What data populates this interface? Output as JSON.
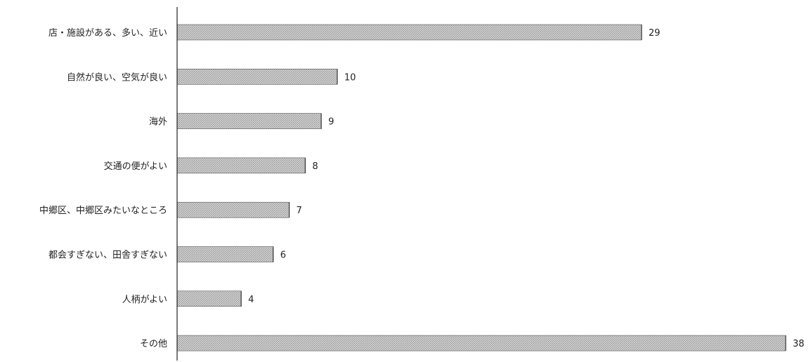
{
  "chart_data": {
    "type": "bar",
    "orientation": "horizontal",
    "categories": [
      "店・施設がある、多い、近い",
      "自然が良い、空気が良い",
      "海外",
      "交通の便がよい",
      "中郷区、中郷区みたいなところ",
      "都会すぎない、田舎すぎない",
      "人柄がよい",
      "その他"
    ],
    "values": [
      29,
      10,
      9,
      8,
      7,
      6,
      4,
      38
    ],
    "data_labels": [
      "29",
      "10",
      "9",
      "8",
      "7",
      "6",
      "4",
      "38"
    ],
    "title": "",
    "xlabel": "",
    "ylabel": "",
    "xlim": [
      0,
      38
    ],
    "grid": false,
    "legend": "none",
    "bar_fill": "#c4c4c4"
  }
}
